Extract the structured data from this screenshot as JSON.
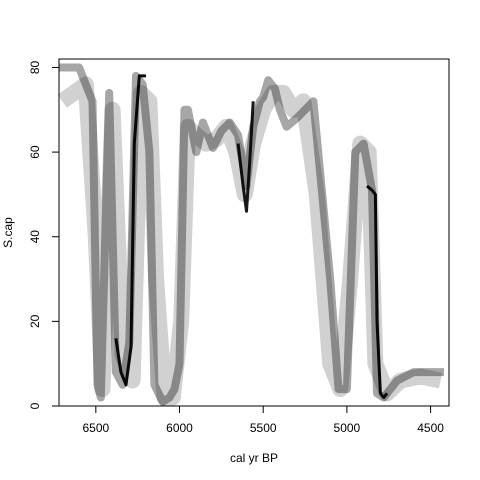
{
  "chart_data": {
    "type": "line",
    "title": "",
    "xlabel": "cal yr BP",
    "ylabel": "S.cap",
    "xlim": [
      6720,
      4390
    ],
    "ylim": [
      0,
      82
    ],
    "x_reversed": true,
    "x_ticks": [
      6500,
      6000,
      5500,
      5000,
      4500
    ],
    "x_tick_labels": [
      "6500",
      "6000",
      "5500",
      "5000",
      "4500"
    ],
    "y_ticks": [
      0,
      20,
      40,
      60,
      80
    ],
    "y_tick_labels": [
      "0",
      "20",
      "40",
      "60",
      "80"
    ],
    "grid": false,
    "style": "grayscale density of age-model iterations",
    "series": [
      {
        "opacity": 0.95,
        "width": 3,
        "x": [
          6380,
          6350,
          6320,
          6290,
          6270,
          6240,
          6200
        ],
        "y": [
          16,
          8,
          5,
          14,
          62,
          78,
          78
        ]
      },
      {
        "opacity": 0.9,
        "width": 3,
        "x": [
          5650,
          5620,
          5600,
          5580,
          5560
        ],
        "y": [
          62,
          52,
          46,
          58,
          72
        ]
      },
      {
        "opacity": 0.95,
        "width": 3,
        "x": [
          4880,
          4850,
          4830,
          4820,
          4800,
          4780,
          4760
        ],
        "y": [
          52,
          51,
          50,
          20,
          3,
          2,
          3
        ]
      },
      {
        "opacity": 0.35,
        "width": 8,
        "x": [
          6720,
          6600,
          6520,
          6490,
          6470,
          6420,
          6380,
          6340,
          6300,
          6260,
          6220,
          6180,
          6150,
          6100,
          6060,
          6030,
          6000,
          5970,
          5950,
          5900,
          5860,
          5800,
          5750,
          5700,
          5650,
          5600,
          5560,
          5520,
          5500,
          5470,
          5430,
          5400,
          5360,
          5300,
          5200,
          5100,
          5050,
          5000,
          4950,
          4900,
          4850,
          4820,
          4780,
          4700,
          4600,
          4500,
          4420
        ],
        "y": [
          80,
          80,
          72,
          5,
          2,
          74,
          8,
          5,
          15,
          78,
          76,
          60,
          5,
          1,
          2,
          4,
          10,
          70,
          70,
          60,
          67,
          61,
          65,
          67,
          64,
          52,
          66,
          72,
          73,
          77,
          75,
          70,
          66,
          68,
          72,
          30,
          4,
          4,
          60,
          62,
          51,
          3,
          2,
          6,
          8,
          8,
          8
        ]
      },
      {
        "opacity": 0.18,
        "width": 16,
        "x": [
          6700,
          6560,
          6500,
          6460,
          6400,
          6340,
          6280,
          6230,
          6180,
          6140,
          6090,
          6040,
          5990,
          5950,
          5900,
          5840,
          5780,
          5720,
          5660,
          5610,
          5560,
          5500,
          5440,
          5380,
          5320,
          5260,
          5180,
          5100,
          5040,
          4980,
          4920,
          4870,
          4830,
          4760,
          4680,
          4560,
          4440
        ],
        "y": [
          72,
          76,
          40,
          4,
          70,
          12,
          6,
          74,
          72,
          30,
          2,
          2,
          20,
          66,
          64,
          62,
          63,
          66,
          60,
          50,
          62,
          70,
          74,
          74,
          70,
          72,
          50,
          10,
          4,
          30,
          62,
          60,
          10,
          3,
          6,
          7,
          6
        ]
      }
    ]
  }
}
